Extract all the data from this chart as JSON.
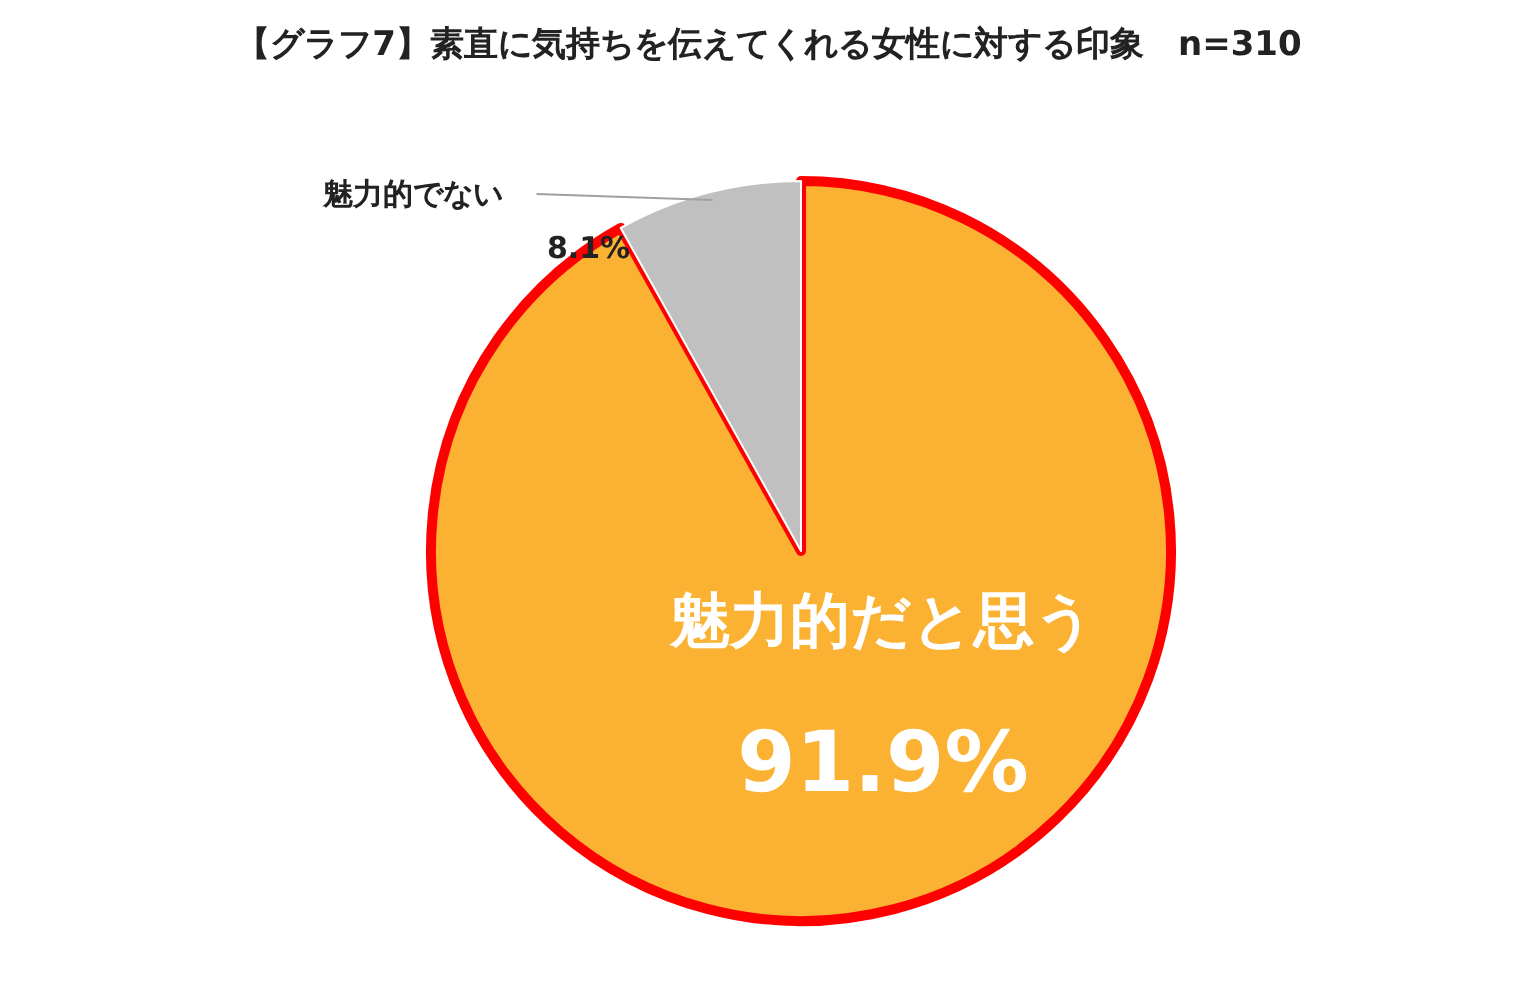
{
  "chart_data": {
    "type": "pie",
    "title": "【グラフ7】素直に気持ちを伝えてくれる女性に対する印象　n=310",
    "categories": [
      "魅力的だと思う",
      "魅力的でない"
    ],
    "values": [
      91.9,
      8.1
    ],
    "colors": [
      "#fbb132",
      "#c0c0c0"
    ],
    "value_labels": [
      "91.9%",
      "8.1%"
    ]
  }
}
